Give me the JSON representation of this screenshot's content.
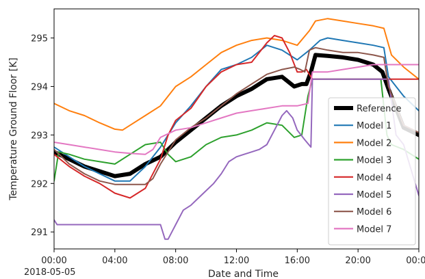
{
  "chart_data": {
    "type": "line",
    "xlabel": "Date and Time",
    "ylabel": "Temperature Ground Floor [K]",
    "x_date_label": "2018-05-05",
    "xlim": [
      0,
      24
    ],
    "ylim": [
      290.65,
      295.6
    ],
    "x_ticks": [
      {
        "value": 0,
        "label": "00:00"
      },
      {
        "value": 4,
        "label": "04:00"
      },
      {
        "value": 8,
        "label": "08:00"
      },
      {
        "value": 12,
        "label": "12:00"
      },
      {
        "value": 16,
        "label": "16:00"
      },
      {
        "value": 20,
        "label": "20:00"
      },
      {
        "value": 24,
        "label": "00:00"
      }
    ],
    "y_ticks": [
      {
        "value": 291,
        "label": "291"
      },
      {
        "value": 292,
        "label": "292"
      },
      {
        "value": 293,
        "label": "293"
      },
      {
        "value": 294,
        "label": "294"
      },
      {
        "value": 295,
        "label": "295"
      }
    ],
    "grid": false,
    "legend_position": "lower-right",
    "series": [
      {
        "name": "Reference",
        "color": "#000000",
        "width": 6,
        "x": [
          0,
          1,
          2,
          3,
          4,
          5,
          6,
          7,
          8,
          9,
          10,
          11,
          12,
          13,
          14,
          15,
          15.8,
          16.3,
          16.6,
          16.9,
          17.2,
          18,
          19,
          20,
          21,
          21.6,
          22,
          22.5,
          23,
          24
        ],
        "y": [
          292.65,
          292.5,
          292.35,
          292.25,
          292.15,
          292.2,
          292.4,
          292.55,
          292.85,
          293.1,
          293.35,
          293.6,
          293.8,
          293.95,
          294.15,
          294.2,
          294.0,
          294.05,
          294.05,
          294.3,
          294.65,
          294.63,
          294.6,
          294.55,
          294.45,
          294.3,
          293.95,
          293.55,
          293.15,
          293.0
        ]
      },
      {
        "name": "Model 1",
        "color": "#1f77b4",
        "width": 2,
        "x": [
          0,
          1,
          2,
          3,
          4,
          5,
          6,
          7,
          8,
          9,
          10,
          11,
          12,
          13,
          14,
          15,
          16,
          16.8,
          17.5,
          18,
          19,
          20,
          21,
          21.7,
          22,
          22.5,
          23,
          24
        ],
        "y": [
          292.75,
          292.55,
          292.35,
          292.2,
          292.05,
          292.05,
          292.35,
          292.75,
          293.25,
          293.6,
          294.0,
          294.35,
          294.45,
          294.6,
          294.85,
          294.75,
          294.55,
          294.75,
          294.95,
          295.0,
          294.95,
          294.9,
          294.85,
          294.8,
          294.2,
          294.0,
          293.8,
          293.5
        ]
      },
      {
        "name": "Model 2",
        "color": "#ff7f0e",
        "width": 2,
        "x": [
          0,
          1,
          2,
          3,
          4,
          4.5,
          5,
          6,
          7,
          8,
          9,
          10,
          11,
          12,
          13,
          14,
          15,
          16,
          16.8,
          17.2,
          18,
          19,
          20,
          21,
          21.7,
          22.2,
          23,
          24
        ],
        "y": [
          293.65,
          293.5,
          293.4,
          293.25,
          293.12,
          293.1,
          293.2,
          293.4,
          293.6,
          294.0,
          294.2,
          294.45,
          294.7,
          294.85,
          294.95,
          295.0,
          294.95,
          294.85,
          295.15,
          295.35,
          295.4,
          295.35,
          295.3,
          295.25,
          295.2,
          294.65,
          294.4,
          294.15
        ]
      },
      {
        "name": "Model 3",
        "color": "#2ca02c",
        "width": 2,
        "x": [
          0,
          0.3,
          1,
          2,
          3,
          4,
          5,
          6,
          7,
          7.5,
          8,
          9,
          10,
          11,
          12,
          13,
          14,
          15,
          15.8,
          16.3,
          16.7,
          17,
          18,
          19,
          20,
          21,
          21.5,
          21.9,
          22.2,
          23,
          24
        ],
        "y": [
          292.05,
          292.65,
          292.6,
          292.5,
          292.45,
          292.4,
          292.6,
          292.8,
          292.85,
          292.6,
          292.45,
          292.55,
          292.8,
          292.95,
          293.0,
          293.1,
          293.25,
          293.2,
          292.95,
          293.0,
          293.8,
          294.15,
          294.15,
          294.15,
          294.15,
          294.15,
          294.15,
          293.0,
          292.8,
          292.7,
          292.5
        ]
      },
      {
        "name": "Model 4",
        "color": "#d62728",
        "width": 2,
        "x": [
          0,
          1,
          2,
          3,
          4,
          5,
          6,
          7,
          7.5,
          8,
          9,
          10,
          11,
          12,
          13,
          14,
          14.5,
          15,
          15.5,
          16,
          16.3,
          16.6,
          16.9,
          17,
          18,
          19,
          20,
          21,
          21.6,
          22,
          22.5,
          24
        ],
        "y": [
          292.6,
          292.35,
          292.15,
          292.0,
          291.8,
          291.7,
          291.9,
          292.5,
          293.0,
          293.3,
          293.55,
          294.0,
          294.3,
          294.45,
          294.5,
          294.9,
          295.05,
          295.0,
          294.7,
          294.3,
          294.3,
          294.35,
          294.2,
          294.15,
          294.15,
          294.15,
          294.15,
          294.15,
          294.15,
          294.15,
          294.15,
          294.15
        ]
      },
      {
        "name": "Model 5",
        "color": "#9467bd",
        "width": 2,
        "x": [
          0,
          0.2,
          1,
          2,
          3,
          4,
          5,
          6,
          7,
          7.3,
          7.5,
          8,
          8.5,
          9,
          9.5,
          10,
          10.5,
          11,
          11.5,
          12,
          12.5,
          13,
          13.5,
          14,
          14.5,
          15,
          15.3,
          15.7,
          16,
          16.5,
          16.9,
          17,
          18,
          19,
          20,
          21,
          22,
          22.5,
          23,
          24
        ],
        "y": [
          291.25,
          291.15,
          291.15,
          291.15,
          291.15,
          291.15,
          291.15,
          291.15,
          291.15,
          290.85,
          290.85,
          291.15,
          291.45,
          291.55,
          291.7,
          291.85,
          292.0,
          292.2,
          292.45,
          292.55,
          292.6,
          292.65,
          292.7,
          292.8,
          293.1,
          293.4,
          293.5,
          293.35,
          293.1,
          292.9,
          292.75,
          294.15,
          294.15,
          294.15,
          294.15,
          294.15,
          294.15,
          293.0,
          292.8,
          291.75
        ]
      },
      {
        "name": "Model 6",
        "color": "#8c564b",
        "width": 2,
        "x": [
          0,
          1,
          2,
          3,
          4,
          5,
          6,
          6.5,
          7,
          8,
          9,
          10,
          11,
          12,
          13,
          14,
          15,
          15.8,
          16.2,
          16.5,
          16.8,
          17.2,
          18,
          19,
          20,
          21,
          21.7,
          22,
          22.5,
          23,
          24
        ],
        "y": [
          292.7,
          292.4,
          292.2,
          292.05,
          291.98,
          291.98,
          291.98,
          292.1,
          292.4,
          292.9,
          293.15,
          293.35,
          293.6,
          293.85,
          294.05,
          294.25,
          294.35,
          294.4,
          294.35,
          294.3,
          294.75,
          294.8,
          294.75,
          294.7,
          294.7,
          294.65,
          294.6,
          294.0,
          293.6,
          293.2,
          293.05
        ]
      },
      {
        "name": "Model 7",
        "color": "#e377c2",
        "width": 2,
        "x": [
          0,
          1,
          2,
          3,
          4,
          5,
          6,
          6.5,
          7,
          8,
          9,
          10,
          11,
          12,
          13,
          14,
          15,
          16,
          16.7,
          17,
          18,
          19,
          20,
          21,
          21.8,
          22,
          22.4,
          23,
          24
        ],
        "y": [
          292.85,
          292.8,
          292.75,
          292.7,
          292.65,
          292.62,
          292.6,
          292.7,
          292.95,
          293.1,
          293.15,
          293.25,
          293.35,
          293.45,
          293.5,
          293.55,
          293.6,
          293.6,
          293.65,
          294.3,
          294.3,
          294.35,
          294.4,
          294.45,
          294.45,
          294.45,
          294.45,
          294.45,
          294.45
        ]
      }
    ]
  }
}
